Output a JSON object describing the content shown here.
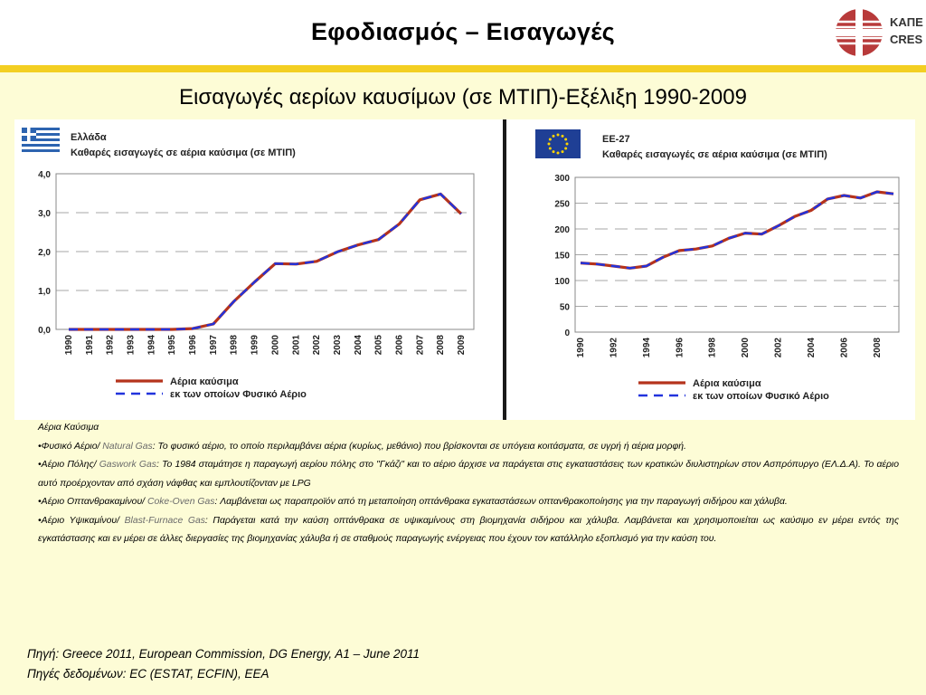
{
  "page": {
    "title": "Εφοδιασμός – Εισαγωγές",
    "subtitle": "Εισαγωγές αερίων καυσίμων (σε ΜΤΙΠ)-Εξέλιξη 1990-2009",
    "logo_line1": "ΚΑΠΕ",
    "logo_line2": "CRES",
    "colors": {
      "header_bar": "#f3cf22",
      "background": "#fdfcd6",
      "series_gas": "#b5331c",
      "series_natural": "#2233dd"
    }
  },
  "chart_data": [
    {
      "type": "line",
      "region": "Ελλάδα",
      "title": "Καθαρές εισαγωγές σε αέρια καύσιμα (σε ΜΤΙΠ)",
      "flag": "greece-flag",
      "x": [
        "1990",
        "1991",
        "1992",
        "1993",
        "1994",
        "1995",
        "1996",
        "1997",
        "1998",
        "1999",
        "2000",
        "2001",
        "2002",
        "2003",
        "2004",
        "2005",
        "2006",
        "2007",
        "2008",
        "2009"
      ],
      "yticks": [
        "0,0",
        "1,0",
        "2,0",
        "3,0",
        "4,0"
      ],
      "ylim": [
        0,
        4
      ],
      "grid": true,
      "series": [
        {
          "name": "Αέρια καύσιμα",
          "values": [
            0,
            0,
            0,
            0,
            0,
            0,
            0.02,
            0.14,
            0.72,
            1.22,
            1.69,
            1.68,
            1.75,
            1.99,
            2.17,
            2.31,
            2.71,
            3.33,
            3.48,
            2.97
          ]
        },
        {
          "name": "εκ των οποίων Φυσικό Αέριο",
          "values": [
            0,
            0,
            0,
            0,
            0,
            0,
            0.02,
            0.14,
            0.72,
            1.22,
            1.69,
            1.68,
            1.75,
            1.99,
            2.17,
            2.31,
            2.71,
            3.33,
            3.48,
            2.97
          ]
        }
      ]
    },
    {
      "type": "line",
      "region": "ΕΕ-27",
      "title": "Καθαρές εισαγωγές σε αέρια καύσιμα (σε ΜΤΙΠ)",
      "flag": "eu-flag",
      "x": [
        "1990",
        "1991",
        "1992",
        "1993",
        "1994",
        "1995",
        "1996",
        "1997",
        "1998",
        "1999",
        "2000",
        "2001",
        "2002",
        "2003",
        "2004",
        "2005",
        "2006",
        "2007",
        "2008",
        "2009"
      ],
      "xtick_labels": [
        "1990",
        "1992",
        "1994",
        "1996",
        "1998",
        "2000",
        "2002",
        "2004",
        "2006",
        "2008"
      ],
      "yticks": [
        "0",
        "50",
        "100",
        "150",
        "200",
        "250",
        "300"
      ],
      "ylim": [
        0,
        300
      ],
      "grid": true,
      "series": [
        {
          "name": "Αέρια καύσιμα",
          "values": [
            134,
            132,
            128,
            124,
            128,
            145,
            158,
            161,
            167,
            182,
            192,
            190,
            206,
            224,
            236,
            258,
            265,
            260,
            272,
            268
          ]
        },
        {
          "name": "εκ των οποίων Φυσικό Αέριο",
          "values": [
            134,
            132,
            128,
            124,
            128,
            145,
            158,
            161,
            167,
            182,
            192,
            190,
            206,
            224,
            236,
            258,
            265,
            260,
            272,
            268
          ]
        }
      ]
    }
  ],
  "notes": {
    "heading": "Αέρια Καύσιμα",
    "items": [
      {
        "prefix": "•Φυσικό Αέριο/ ",
        "en": "Natural Gas",
        "text": ": Το φυσικό αέριο, το οποίο περιλαμβάνει αέρια (κυρίως, μεθάνιο) που βρίσκονται σε υπόγεια κοιτάσματα, σε υγρή ή αέρια μορφή."
      },
      {
        "prefix": "•Αέριο Πόλης/ ",
        "en": "Gaswork Gas",
        "text": ": Το 1984 σταμάτησε η παραγωγή αερίου πόλης στο \"Γκάζι\" και το αέριο άρχισε να παράγεται στις εγκαταστάσεις των κρατικών διυλιστηρίων στον Ασπρόπυργο (ΕΛ.Δ.Α). Το αέριο αυτό προέρχονταν από σχάση νάφθας και εμπλουτίζονταν με LPG"
      },
      {
        "prefix": "•Αέριο Οπτανθρακαμίνου/ ",
        "en": "Coke-Oven Gas",
        "text": ": Λαμβάνεται ως παραπροϊόν από τη μεταποίηση οπτάνθρακα εγκαταστάσεων οπτανθρακοποίησης για την παραγωγή σιδήρου και χάλυβα."
      },
      {
        "prefix": "•Αέριο Υψικαμίνου/ ",
        "en": "Blast-Furnace Gas",
        "text": ": Παράγεται κατά την καύση οπτάνθρακα σε υψικαμίνους στη βιομηχανία σιδήρου και χάλυβα. Λαμβάνεται και χρησιμοποιείται ως καύσιμο εν μέρει εντός της εγκατάστασης και εν μέρει σε άλλες διεργασίες της βιομηχανίας χάλυβα ή σε σταθμούς παραγωγής ενέργειας που έχουν τον κατάλληλο εξοπλισμό για την καύση του."
      }
    ]
  },
  "sources": {
    "line1": "Πηγή: Greece 2011, European Commission, DG Energy, A1 – June 2011",
    "line2": "Πηγές δεδομένων: EC (ESTAT, ECFIN), EEA"
  }
}
